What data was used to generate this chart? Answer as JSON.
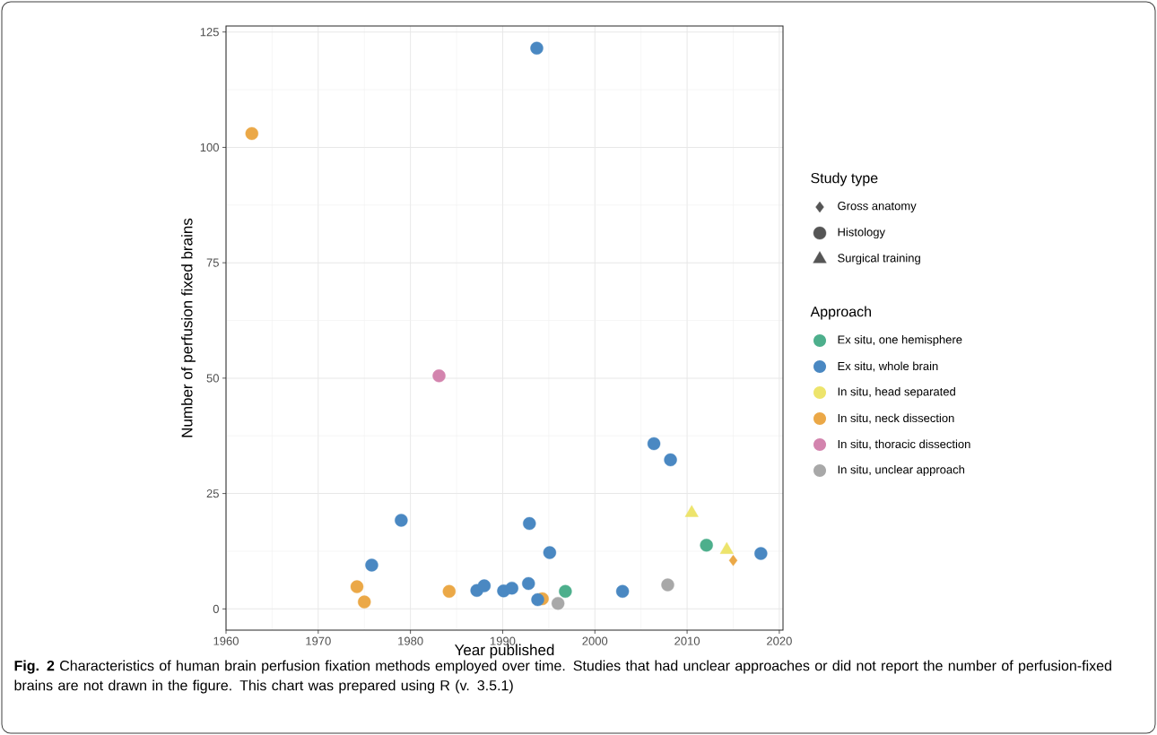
{
  "chart_data": [
    {
      "type": "scatter",
      "xlabel": "Year published",
      "ylabel": "Number of perfusion fixed brains",
      "xlim": [
        1960,
        2020.4
      ],
      "ylim": [
        -4.6,
        126.3
      ],
      "xticks": [
        1960,
        1970,
        1980,
        1990,
        2000,
        2010,
        2020
      ],
      "yticks": [
        0,
        25,
        50,
        75,
        100,
        125
      ],
      "grid": true,
      "legend": "right",
      "legend_title": "Approach",
      "series": [
        {
          "name": "Ex situ, one hemisphere",
          "color": "#4daf8c",
          "marker": "circle",
          "x": [
            1996.8,
            2012.1
          ],
          "values": [
            3.8,
            13.8
          ]
        },
        {
          "name": "Ex situ, whole brain",
          "color": "#4a88c2",
          "marker": "circle",
          "x": [
            1993.7,
            1975.8,
            1979.0,
            1987.2,
            1988.0,
            1990.1,
            1991.0,
            1992.8,
            1992.9,
            1993.8,
            1995.1,
            2003.0,
            2006.4,
            2008.2,
            2018.0
          ],
          "values": [
            121.5,
            9.5,
            19.2,
            4.0,
            5.0,
            3.9,
            4.5,
            5.5,
            18.5,
            2.0,
            12.2,
            3.8,
            35.8,
            32.3,
            12.0
          ]
        },
        {
          "name": "In situ, head separated",
          "color": "#ede46c",
          "marker": "triangle",
          "x": [
            2010.5,
            2014.3
          ],
          "values": [
            20.8,
            12.8
          ]
        },
        {
          "name": "In situ, neck dissection",
          "color": "#eba847",
          "marker": "circle",
          "x": [
            1962.8,
            1974.2,
            1975.0,
            1984.2,
            1994.3
          ],
          "values": [
            103.0,
            4.8,
            1.5,
            3.8,
            2.2
          ]
        },
        {
          "color": "#eba847",
          "marker": "diamond",
          "x": [
            2015.0
          ],
          "values": [
            10.5
          ]
        },
        {
          "name": "In situ, thoracic dissection",
          "color": "#d384ae",
          "marker": "circle",
          "x": [
            1983.1
          ],
          "values": [
            50.5
          ]
        },
        {
          "name": "In situ, unclear approach",
          "color": "#a8a8a8",
          "marker": "circle",
          "x": [
            1996.0,
            2007.9
          ],
          "values": [
            1.2,
            5.2
          ]
        }
      ],
      "annotations": [
        "**Fig. 2** Characteristics of human brain perfusion fixation methods employed over time. Studies that had unclear approaches or did not report the number of perfusion-fixed brains are not drawn in the figure. This chart was prepared using R (v. 3.5.1)"
      ]
    },
    {
      "type": "other",
      "title": "Study type",
      "categories": [
        "Gross anatomy",
        "Histology",
        "Surgical training"
      ]
    }
  ]
}
